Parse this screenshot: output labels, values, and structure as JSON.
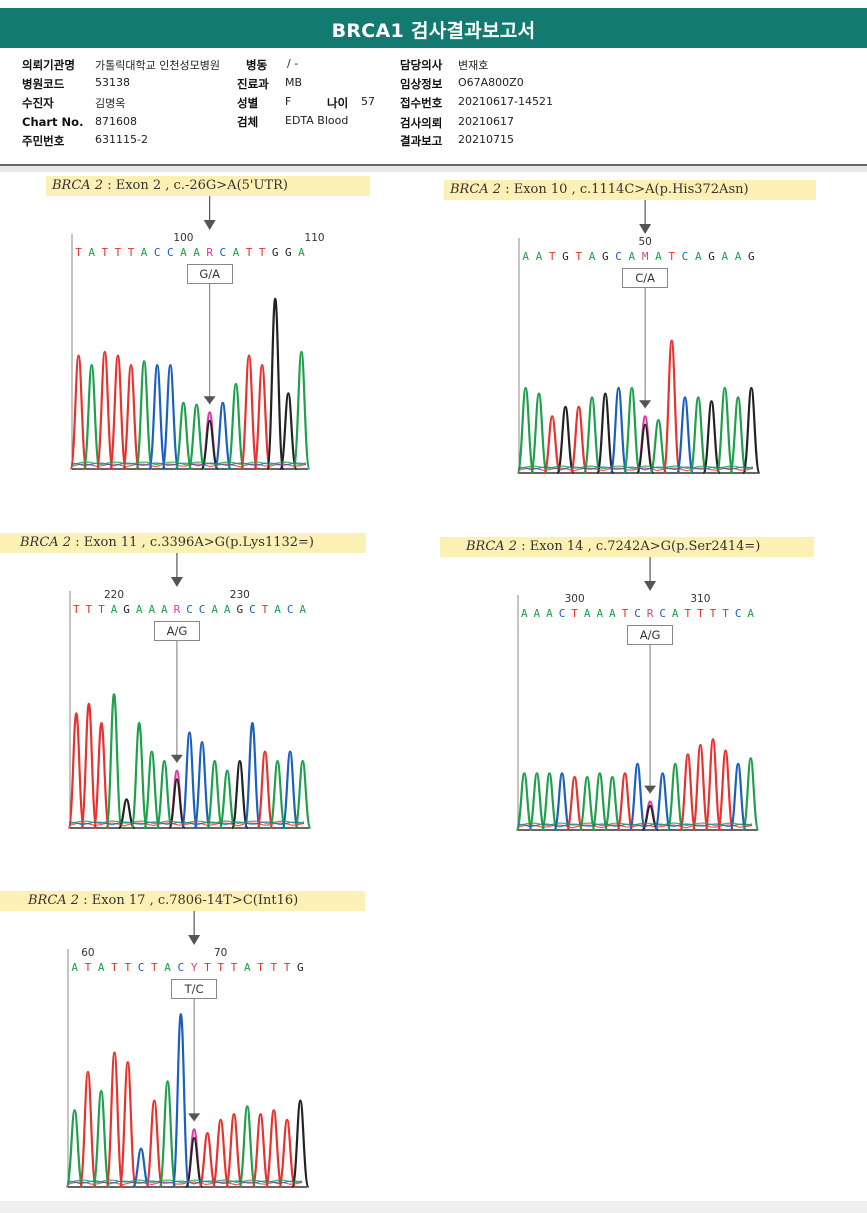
{
  "title": "BRCA1 검사결과보고서",
  "info": {
    "requesting_org_label": "의뢰기관명",
    "requesting_org_value": "가톨릭대학교 인천성모병원",
    "ward_label": "병동",
    "ward_value": "/ -",
    "doctor_label": "담당의사",
    "doctor_value": "변재호",
    "hospital_code_label": "병원코드",
    "hospital_code_value": "53138",
    "dept_label": "진료과",
    "dept_value": "MB",
    "clinical_info_label": "임상정보",
    "clinical_info_value": "O67A800Z0",
    "patient_label": "수진자",
    "patient_value": "김명옥",
    "sex_label": "성별",
    "sex_value": "F",
    "age_label": "나이",
    "age_value": "57",
    "receipt_no_label": "접수번호",
    "receipt_no_value": "20210617-14521",
    "chart_no_label": "Chart No.",
    "chart_no_value": "871608",
    "specimen_label": "검체",
    "specimen_value": "EDTA Blood",
    "request_date_label": "검사의뢰",
    "request_date_value": "20210617",
    "id_no_label": "주민번호",
    "id_no_value": "631115-2",
    "report_date_label": "결과보고",
    "report_date_value": "20210715"
  },
  "colors": {
    "header_bg": "#127a70",
    "label_bg": "#fdf0b4",
    "A": "#1fa04a",
    "C": "#1b5fc0",
    "G": "#222222",
    "T": "#e8322e",
    "ambiguous": "#d63aa0"
  },
  "variants": [
    {
      "gene": "BRCA 2",
      "desc": " : Exon 2 , c.-26G>A(5'UTR)",
      "genotype": "G/A",
      "sequence": "TATTTACCAARCATTGGA",
      "pos_labels": [
        "100",
        "110"
      ],
      "pos_index": [
        8,
        18
      ],
      "peaks": [
        [
          "T",
          0.6
        ],
        [
          "A",
          0.55
        ],
        [
          "T",
          0.62
        ],
        [
          "T",
          0.6
        ],
        [
          "T",
          0.55
        ],
        [
          "A",
          0.57
        ],
        [
          "C",
          0.55
        ],
        [
          "C",
          0.55
        ],
        [
          "A",
          0.35
        ],
        [
          "A",
          0.34
        ],
        [
          "R",
          0.3
        ],
        [
          "C",
          0.35
        ],
        [
          "A",
          0.45
        ],
        [
          "T",
          0.6
        ],
        [
          "T",
          0.55
        ],
        [
          "G",
          0.9
        ],
        [
          "G",
          0.4
        ],
        [
          "A",
          0.62
        ]
      ]
    },
    {
      "gene": "BRCA 2",
      "desc": " : Exon 10 , c.1114C>A(p.His372Asn)",
      "genotype": "C/A",
      "sequence": "AATGTAGCAMATCAGAAG",
      "pos_labels": [
        "50"
      ],
      "pos_index": [
        9
      ],
      "peaks": [
        [
          "A",
          0.45
        ],
        [
          "A",
          0.42
        ],
        [
          "T",
          0.3
        ],
        [
          "G",
          0.35
        ],
        [
          "T",
          0.35
        ],
        [
          "A",
          0.4
        ],
        [
          "G",
          0.42
        ],
        [
          "C",
          0.45
        ],
        [
          "A",
          0.45
        ],
        [
          "M",
          0.3
        ],
        [
          "A",
          0.28
        ],
        [
          "T",
          0.7
        ],
        [
          "C",
          0.4
        ],
        [
          "A",
          0.4
        ],
        [
          "G",
          0.38
        ],
        [
          "A",
          0.45
        ],
        [
          "A",
          0.4
        ],
        [
          "G",
          0.45
        ]
      ]
    },
    {
      "gene": "BRCA 2",
      "desc": " : Exon 11 , c.3396A>G(p.Lys1132=)",
      "genotype": "A/G",
      "sequence": "TTTAGAAARCCAAGCTACA",
      "pos_labels": [
        "220",
        "230"
      ],
      "pos_index": [
        3,
        13
      ],
      "peaks": [
        [
          "T",
          0.6
        ],
        [
          "T",
          0.65
        ],
        [
          "T",
          0.55
        ],
        [
          "A",
          0.7
        ],
        [
          "G",
          0.15
        ],
        [
          "A",
          0.55
        ],
        [
          "A",
          0.4
        ],
        [
          "A",
          0.35
        ],
        [
          "R",
          0.3
        ],
        [
          "C",
          0.5
        ],
        [
          "C",
          0.45
        ],
        [
          "A",
          0.35
        ],
        [
          "A",
          0.3
        ],
        [
          "G",
          0.35
        ],
        [
          "C",
          0.55
        ],
        [
          "T",
          0.4
        ],
        [
          "A",
          0.35
        ],
        [
          "C",
          0.4
        ],
        [
          "A",
          0.35
        ]
      ]
    },
    {
      "gene": "BRCA 2",
      "desc": " : Exon 14 , c.7242A>G(p.Ser2414=)",
      "genotype": "A/G",
      "sequence": "AAACTAAATCRCATTTTCA",
      "pos_labels": [
        "300",
        "310"
      ],
      "pos_index": [
        4,
        14
      ],
      "peaks": [
        [
          "A",
          0.3
        ],
        [
          "A",
          0.3
        ],
        [
          "A",
          0.3
        ],
        [
          "C",
          0.3
        ],
        [
          "T",
          0.28
        ],
        [
          "A",
          0.28
        ],
        [
          "A",
          0.3
        ],
        [
          "A",
          0.28
        ],
        [
          "T",
          0.3
        ],
        [
          "C",
          0.35
        ],
        [
          "R",
          0.15
        ],
        [
          "C",
          0.3
        ],
        [
          "A",
          0.35
        ],
        [
          "T",
          0.4
        ],
        [
          "T",
          0.45
        ],
        [
          "T",
          0.48
        ],
        [
          "T",
          0.42
        ],
        [
          "C",
          0.35
        ],
        [
          "A",
          0.38
        ]
      ]
    },
    {
      "gene": "BRCA 2",
      "desc": " : Exon 17 , c.7806-14T>C(Int16)",
      "genotype": "T/C",
      "sequence": "ATATTCTACYTTTATTTG",
      "pos_labels": [
        "60",
        "70"
      ],
      "pos_index": [
        1,
        11
      ],
      "peaks": [
        [
          "A",
          0.4
        ],
        [
          "T",
          0.6
        ],
        [
          "A",
          0.5
        ],
        [
          "T",
          0.7
        ],
        [
          "T",
          0.65
        ],
        [
          "C",
          0.2
        ],
        [
          "T",
          0.45
        ],
        [
          "A",
          0.55
        ],
        [
          "C",
          0.9
        ],
        [
          "Y",
          0.3
        ],
        [
          "T",
          0.28
        ],
        [
          "T",
          0.35
        ],
        [
          "T",
          0.38
        ],
        [
          "A",
          0.42
        ],
        [
          "T",
          0.38
        ],
        [
          "T",
          0.4
        ],
        [
          "T",
          0.35
        ],
        [
          "G",
          0.45
        ]
      ]
    }
  ]
}
